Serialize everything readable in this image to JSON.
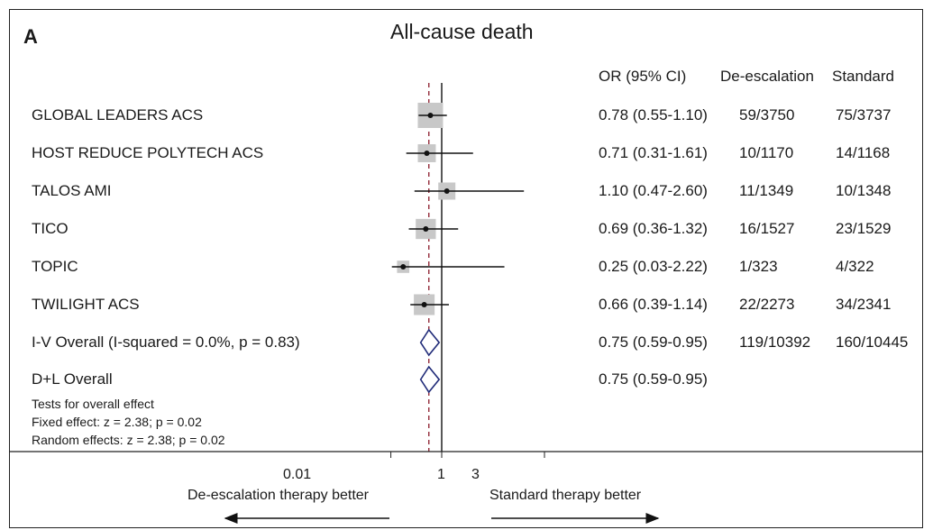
{
  "panel_label": "A",
  "chart_data": {
    "type": "forest",
    "title": "All-cause death",
    "columns": [
      "OR (95% CI)",
      "De-escalation",
      "Standard"
    ],
    "studies": [
      {
        "name": "GLOBAL LEADERS ACS",
        "or": 0.78,
        "lo": 0.55,
        "hi": 1.1,
        "ci_text": "0.78 (0.55-1.10)",
        "deesc": "59/3750",
        "std": "75/3737",
        "weight": 1.0
      },
      {
        "name": "HOST REDUCE POLYTECH ACS",
        "or": 0.71,
        "lo": 0.31,
        "hi": 1.61,
        "ci_text": "0.71 (0.31-1.61)",
        "deesc": "10/1170",
        "std": "14/1168",
        "weight": 0.4
      },
      {
        "name": "TALOS AMI",
        "or": 1.1,
        "lo": 0.47,
        "hi": 2.6,
        "ci_text": "1.10 (0.47-2.60)",
        "deesc": "11/1349",
        "std": "10/1348",
        "weight": 0.35
      },
      {
        "name": "TICO",
        "or": 0.69,
        "lo": 0.36,
        "hi": 1.32,
        "ci_text": "0.69 (0.36-1.32)",
        "deesc": "16/1527",
        "std": "23/1529",
        "weight": 0.55
      },
      {
        "name": "TOPIC",
        "or": 0.25,
        "lo": 0.03,
        "hi": 2.22,
        "ci_text": "0.25 (0.03-2.22)",
        "deesc": "1/323",
        "std": "4/322",
        "weight": 0.12
      },
      {
        "name": "TWILIGHT ACS",
        "or": 0.66,
        "lo": 0.39,
        "hi": 1.14,
        "ci_text": "0.66 (0.39-1.14)",
        "deesc": "22/2273",
        "std": "34/2341",
        "weight": 0.6
      }
    ],
    "overall": [
      {
        "name": "I-V Overall  (I-squared = 0.0%, p  = 0.83)",
        "or": 0.75,
        "lo": 0.59,
        "hi": 0.95,
        "ci_text": "0.75 (0.59-0.95)",
        "deesc": "119/10392",
        "std": "160/10445"
      },
      {
        "name": "D+L Overall",
        "or": 0.75,
        "lo": 0.59,
        "hi": 0.95,
        "ci_text": "0.75 (0.59-0.95)",
        "deesc": "",
        "std": ""
      }
    ],
    "tests": [
      "Tests for overall effect",
      "Fixed effect: z = 2.38; p = 0.02",
      "Random effects: z = 2.38; p = 0.02"
    ],
    "x_ticks": [
      {
        "value": 0.01,
        "label": "0.01"
      },
      {
        "value": 1,
        "label": "1"
      },
      {
        "value": 3,
        "label": "3"
      }
    ],
    "xlim": [
      0.0,
      3.0
    ],
    "null_value": 1,
    "pooled_line": 0.75,
    "left_direction": "De-escalation therapy better",
    "right_direction": "Standard therapy better",
    "colors": {
      "ci_line": "#111111",
      "box": "#c8c8c8",
      "diamond": "#1f2a78",
      "pooled_line": "#8b1a2a"
    }
  }
}
